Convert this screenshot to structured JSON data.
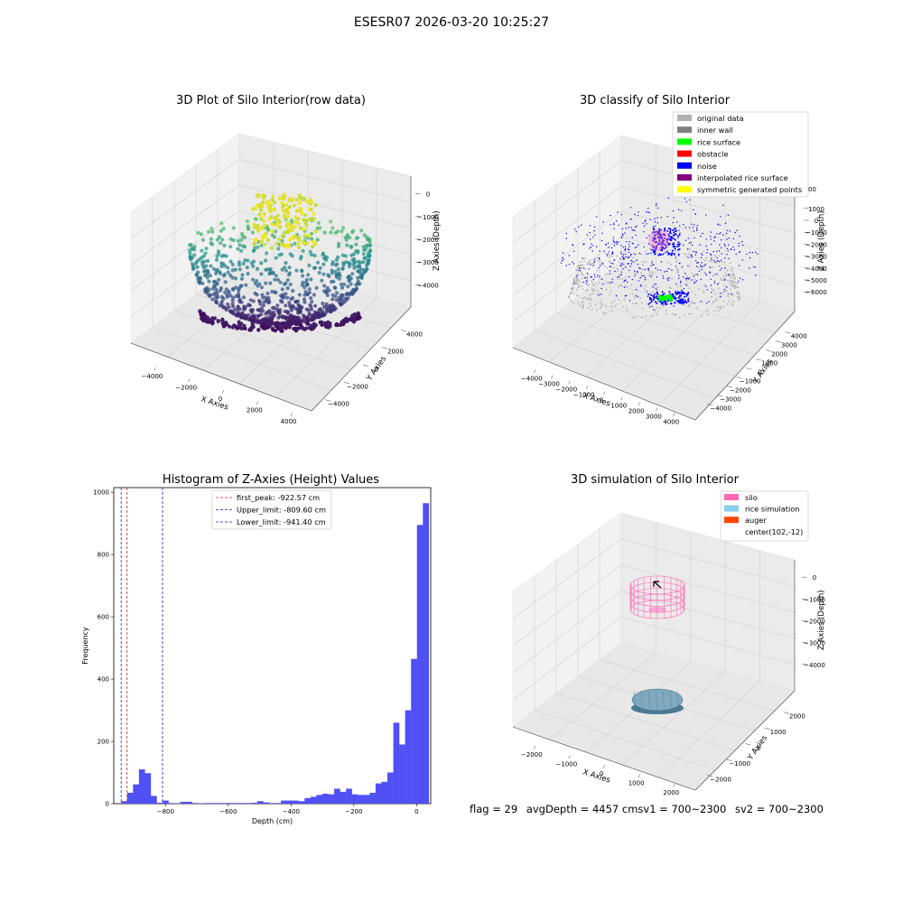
{
  "figure_title": "ESESR07 2026-03-20 10:25:27",
  "status_line": {
    "flag": "flag = 29",
    "avg_depth": "avgDepth = 4457 cmsv1 = 700~2300",
    "sv2": "sv2 = 700~2300"
  },
  "colors": {
    "hist_bar": "#5050f5",
    "first_peak": "#e02020",
    "limits": "#1a1ad0",
    "wall_gray": "#b0b0b0",
    "noise": "#0000ff",
    "rice": "#00ff00",
    "silo": "#ff69b4",
    "rice_sim": "#87ceeb",
    "auger": "#ff4500"
  },
  "chart_data": [
    {
      "type": "scatter",
      "panel": "raw",
      "title": "3D Plot of Silo Interior(row data)",
      "xlabel": "X Axies",
      "ylabel": "Y Axies",
      "zlabel": "Z Axies (Depth)",
      "xticks": [
        "−4000",
        "−2000",
        "0",
        "2000",
        "4000"
      ],
      "yticks": [
        "4000",
        "2000",
        "0",
        "−2000",
        "−4000"
      ],
      "zticks": [
        "0",
        "−1000",
        "−2000",
        "−3000",
        "−4000"
      ],
      "colormap": "viridis"
    },
    {
      "type": "scatter",
      "panel": "classify",
      "title": "3D classify of Silo Interior",
      "xlabel": "X Axies",
      "ylabel": "Y Axies",
      "zlabel": "Z Axies (Depth)",
      "xticks": [
        "−4000",
        "−3000",
        "−2000",
        "−1000",
        "0",
        "1000",
        "2000",
        "3000",
        "4000"
      ],
      "yticks": [
        "4000",
        "3000",
        "2000",
        "1000",
        "0",
        "−1000",
        "−2000",
        "−3000",
        "−4000"
      ],
      "zticks": [
        "1000",
        "0",
        "−1000",
        "−2000",
        "−3000",
        "−4000",
        "−5000",
        "−6000"
      ],
      "zticks_partial": "00",
      "legend": [
        {
          "label": "original data",
          "color": "#b0b0b0"
        },
        {
          "label": "inner wall",
          "color": "#808080"
        },
        {
          "label": "rice surface",
          "color": "#00ff00"
        },
        {
          "label": "obstacle",
          "color": "#ff0000"
        },
        {
          "label": "noise",
          "color": "#0000ff"
        },
        {
          "label": "interpolated rice surface",
          "color": "#800080"
        },
        {
          "label": "symmetric generated points",
          "color": "#ffff00"
        }
      ],
      "legend_placement": "upper right"
    },
    {
      "type": "bar",
      "panel": "histogram",
      "title": "Histogram of Z-Axies (Height) Values",
      "xlabel": "Depth (cm)",
      "ylabel": "Frequency",
      "xlim": [
        -965,
        45
      ],
      "ylim": [
        0,
        1015
      ],
      "xticks": [
        -800,
        -600,
        -400,
        -200,
        0
      ],
      "xtick_labels": [
        "−800",
        "−600",
        "−400",
        "−200",
        "0"
      ],
      "yticks": [
        0,
        200,
        400,
        600,
        800,
        1000
      ],
      "bin_width": 18.85,
      "bins_start": -941.4,
      "values": [
        8,
        35,
        62,
        110,
        98,
        25,
        3,
        10,
        2,
        1,
        6,
        6,
        2,
        1,
        2,
        2,
        2,
        2,
        2,
        2,
        2,
        2,
        3,
        8,
        4,
        2,
        2,
        10,
        10,
        10,
        8,
        18,
        22,
        28,
        32,
        30,
        48,
        38,
        48,
        30,
        28,
        28,
        35,
        65,
        70,
        100,
        260,
        190,
        300,
        465,
        895,
        965
      ],
      "vlines": [
        {
          "label": "first_peak: -922.57 cm",
          "x": -922.57,
          "style": "red-dashed"
        },
        {
          "label": "Upper_limit: -809.60 cm",
          "x": -809.6,
          "style": "blue-dashed"
        },
        {
          "label": "Lower_limit: -941.40 cm",
          "x": -941.4,
          "style": "blue-dashed"
        }
      ],
      "legend_placement": "upper center"
    },
    {
      "type": "scatter",
      "panel": "simulation",
      "title": "3D simulation of Silo Interior",
      "xlabel": "X Axies",
      "ylabel": "Y Axies",
      "zlabel": "Z Axies (Depth)",
      "xticks": [
        "−2000",
        "−1000",
        "0",
        "1000",
        "2000"
      ],
      "yticks": [
        "2000",
        "1000",
        "0",
        "−1000",
        "−2000"
      ],
      "zticks": [
        "0",
        "−1000",
        "−2000",
        "−3000",
        "−4000"
      ],
      "legend": [
        {
          "label": "silo",
          "color": "#ff69b4"
        },
        {
          "label": "rice simulation",
          "color": "#87ceeb"
        },
        {
          "label": "auger",
          "color": "#ff4500"
        },
        {
          "label": "center(102,-12)",
          "color": ""
        }
      ],
      "legend_placement": "upper right"
    }
  ]
}
